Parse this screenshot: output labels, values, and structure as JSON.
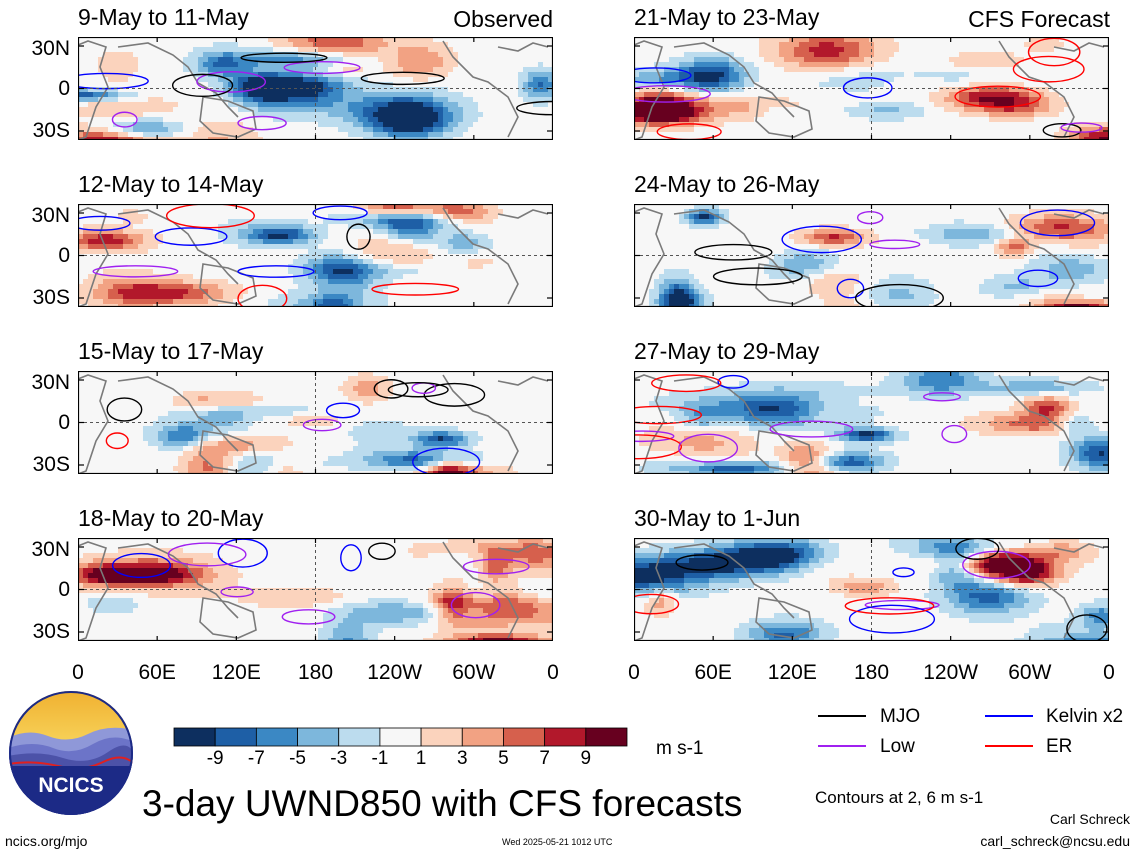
{
  "panels": [
    {
      "title": "9-May to 11-May",
      "tag": "Observed"
    },
    {
      "title": "12-May to 14-May",
      "tag": ""
    },
    {
      "title": "15-May to 17-May",
      "tag": ""
    },
    {
      "title": "18-May to 20-May",
      "tag": ""
    },
    {
      "title": "21-May to 23-May",
      "tag": "CFS Forecast"
    },
    {
      "title": "24-May to 26-May",
      "tag": ""
    },
    {
      "title": "27-May to 29-May",
      "tag": ""
    },
    {
      "title": "30-May to 1-Jun",
      "tag": ""
    }
  ],
  "y_labels": [
    "30N",
    "0",
    "30S"
  ],
  "x_labels": [
    "0",
    "60E",
    "120E",
    "180",
    "120W",
    "60W",
    "0"
  ],
  "colorbar": {
    "ticks": [
      "-9",
      "-7",
      "-5",
      "-3",
      "-1",
      "1",
      "3",
      "5",
      "7",
      "9"
    ],
    "units": "m s-1",
    "colors": [
      "#0d2f5f",
      "#1e5fa6",
      "#3b88c4",
      "#7db7dc",
      "#bcdcee",
      "#f7f7f7",
      "#fbd3bd",
      "#f2a283",
      "#d6604d",
      "#b2182b",
      "#67001f"
    ]
  },
  "legend": {
    "items": [
      {
        "label": "MJO",
        "color": "#000000"
      },
      {
        "label": "Kelvin x2",
        "color": "#0000ff"
      },
      {
        "label": "Low",
        "color": "#a020f0"
      },
      {
        "label": "ER",
        "color": "#ff0000"
      }
    ],
    "contours_note": "Contours at 2, 6 m s-1"
  },
  "title": "3-day UWND850 with CFS forecasts",
  "logo_text": "NCICS",
  "footer": {
    "website": "ncics.org/mjo",
    "timestamp": "Wed 2025-05-21 1012 UTC",
    "author": "Carl Schreck",
    "email": "carl_schreck@ncsu.edu"
  }
}
